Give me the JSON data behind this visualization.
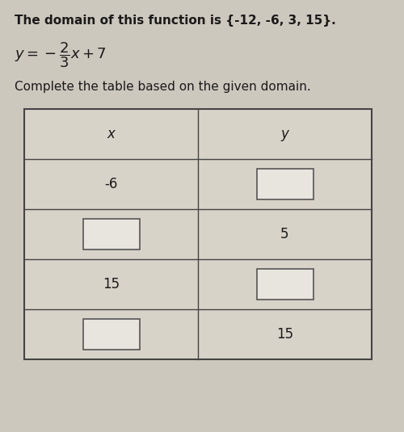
{
  "bg_color": "#cdc8be",
  "title_line1": "The domain of this function is {-12, -6, 3, 15}.",
  "instruction": "Complete the table based on the given domain.",
  "table_header": [
    "x",
    "y"
  ],
  "rows": [
    {
      "x": "-6",
      "y": "",
      "x_box": false,
      "y_box": true
    },
    {
      "x": "",
      "y": "5",
      "x_box": true,
      "y_box": false
    },
    {
      "x": "15",
      "y": "",
      "x_box": false,
      "y_box": true
    },
    {
      "x": "",
      "y": "15",
      "x_box": true,
      "y_box": false
    }
  ],
  "box_color": "#e8e4de",
  "box_border": "#555555",
  "table_border": "#444444",
  "table_bg": "#d8d3c9",
  "text_color": "#1a1a1a",
  "font_size_title": 11,
  "font_size_eq": 13,
  "font_size_instr": 11,
  "font_size_table": 12
}
